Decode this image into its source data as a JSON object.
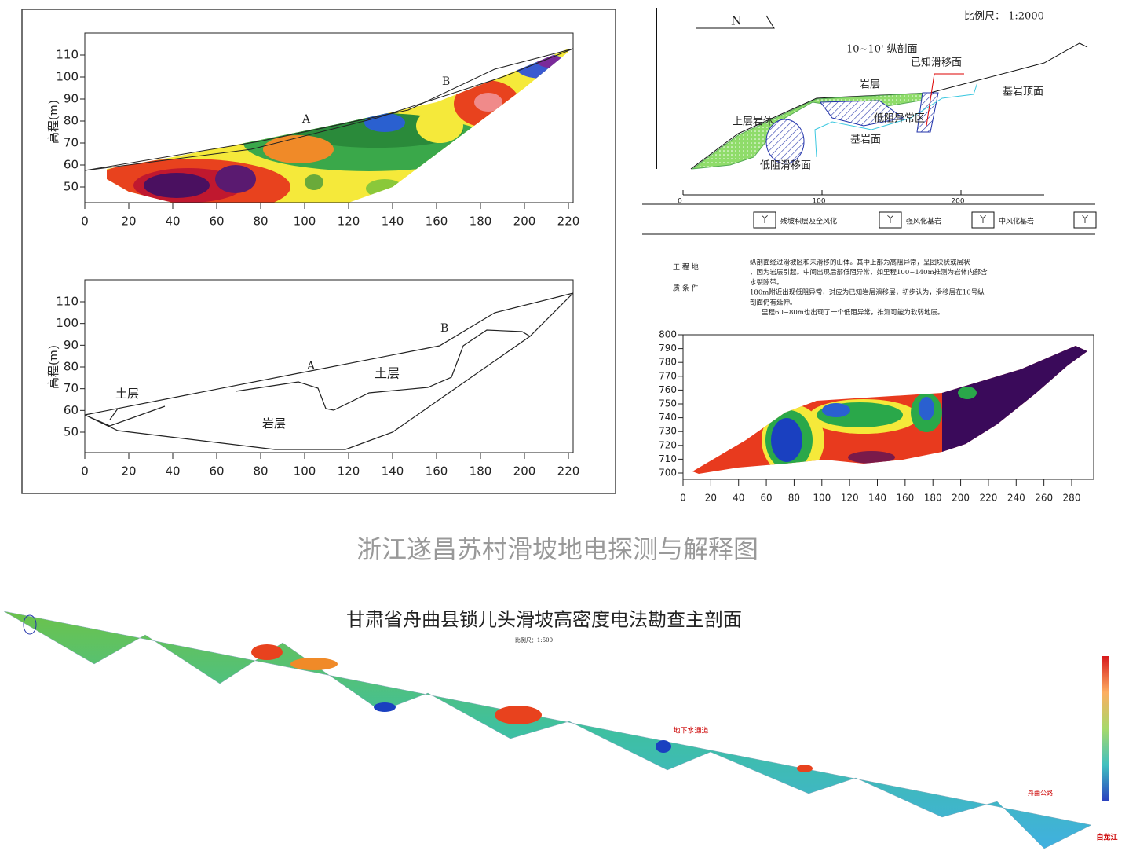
{
  "panel_a": {
    "ylabel": "高程(m)",
    "labels": [
      "A",
      "B"
    ],
    "xticks": [
      0,
      20,
      40,
      60,
      80,
      100,
      120,
      140,
      160,
      180,
      200,
      220
    ],
    "yticks": [
      50,
      60,
      70,
      80,
      90,
      100,
      110
    ]
  },
  "panel_b": {
    "ylabel": "高程(m)",
    "labels": [
      "A",
      "B",
      "土层",
      "土层",
      "岩层"
    ],
    "xticks": [
      0,
      20,
      40,
      60,
      80,
      100,
      120,
      140,
      160,
      180,
      200,
      220
    ],
    "yticks": [
      50,
      60,
      70,
      80,
      90,
      100,
      110
    ]
  },
  "panel_c": {
    "north": "N",
    "scale": "比例尺：  1:2000",
    "labels": [
      "10~10' 纵剖面",
      "已知滑移面",
      "岩层",
      "基岩顶面",
      "上层岩体",
      "低阻异常区",
      "基岩面",
      "低阻滑移面"
    ],
    "xticks": [
      0,
      100,
      200
    ],
    "legend": [
      "残坡积层及全风化",
      "强风化基岩",
      "中风化基岩"
    ],
    "notes_heading": [
      "工 程 地",
      "质 条 件"
    ],
    "notes": [
      "纵剖面经过滑坡区和未滑移的山体。其中上部为高阻异常，呈团块状或层状",
      "，因为岩层引起。中间出现后部低阻异常，如里程100~140m推测为岩体内部含",
      "水裂隙带。",
      "180m附近出现低阻异常，对应为已知岩层滑移层，初步认为，滑移层在10号纵",
      "剖面仍有延伸。",
      "里程60~80m也出现了一个低阻异常，推测可能为软弱地层。"
    ]
  },
  "panel_d": {
    "xticks": [
      0,
      20,
      40,
      60,
      80,
      100,
      120,
      140,
      160,
      180,
      200,
      220,
      240,
      260,
      280
    ],
    "yticks": [
      700,
      710,
      720,
      730,
      740,
      750,
      760,
      770,
      780,
      790,
      800
    ]
  },
  "caption": "浙江遂昌苏村滑坡地电探测与解释图",
  "bottom": {
    "title": "甘肃省舟曲县锁儿头滑坡高密度电法勘查主剖面",
    "scale": "比例尺：1:500",
    "labels": [
      "地下水通道",
      "舟曲公路",
      "白龙江"
    ]
  }
}
